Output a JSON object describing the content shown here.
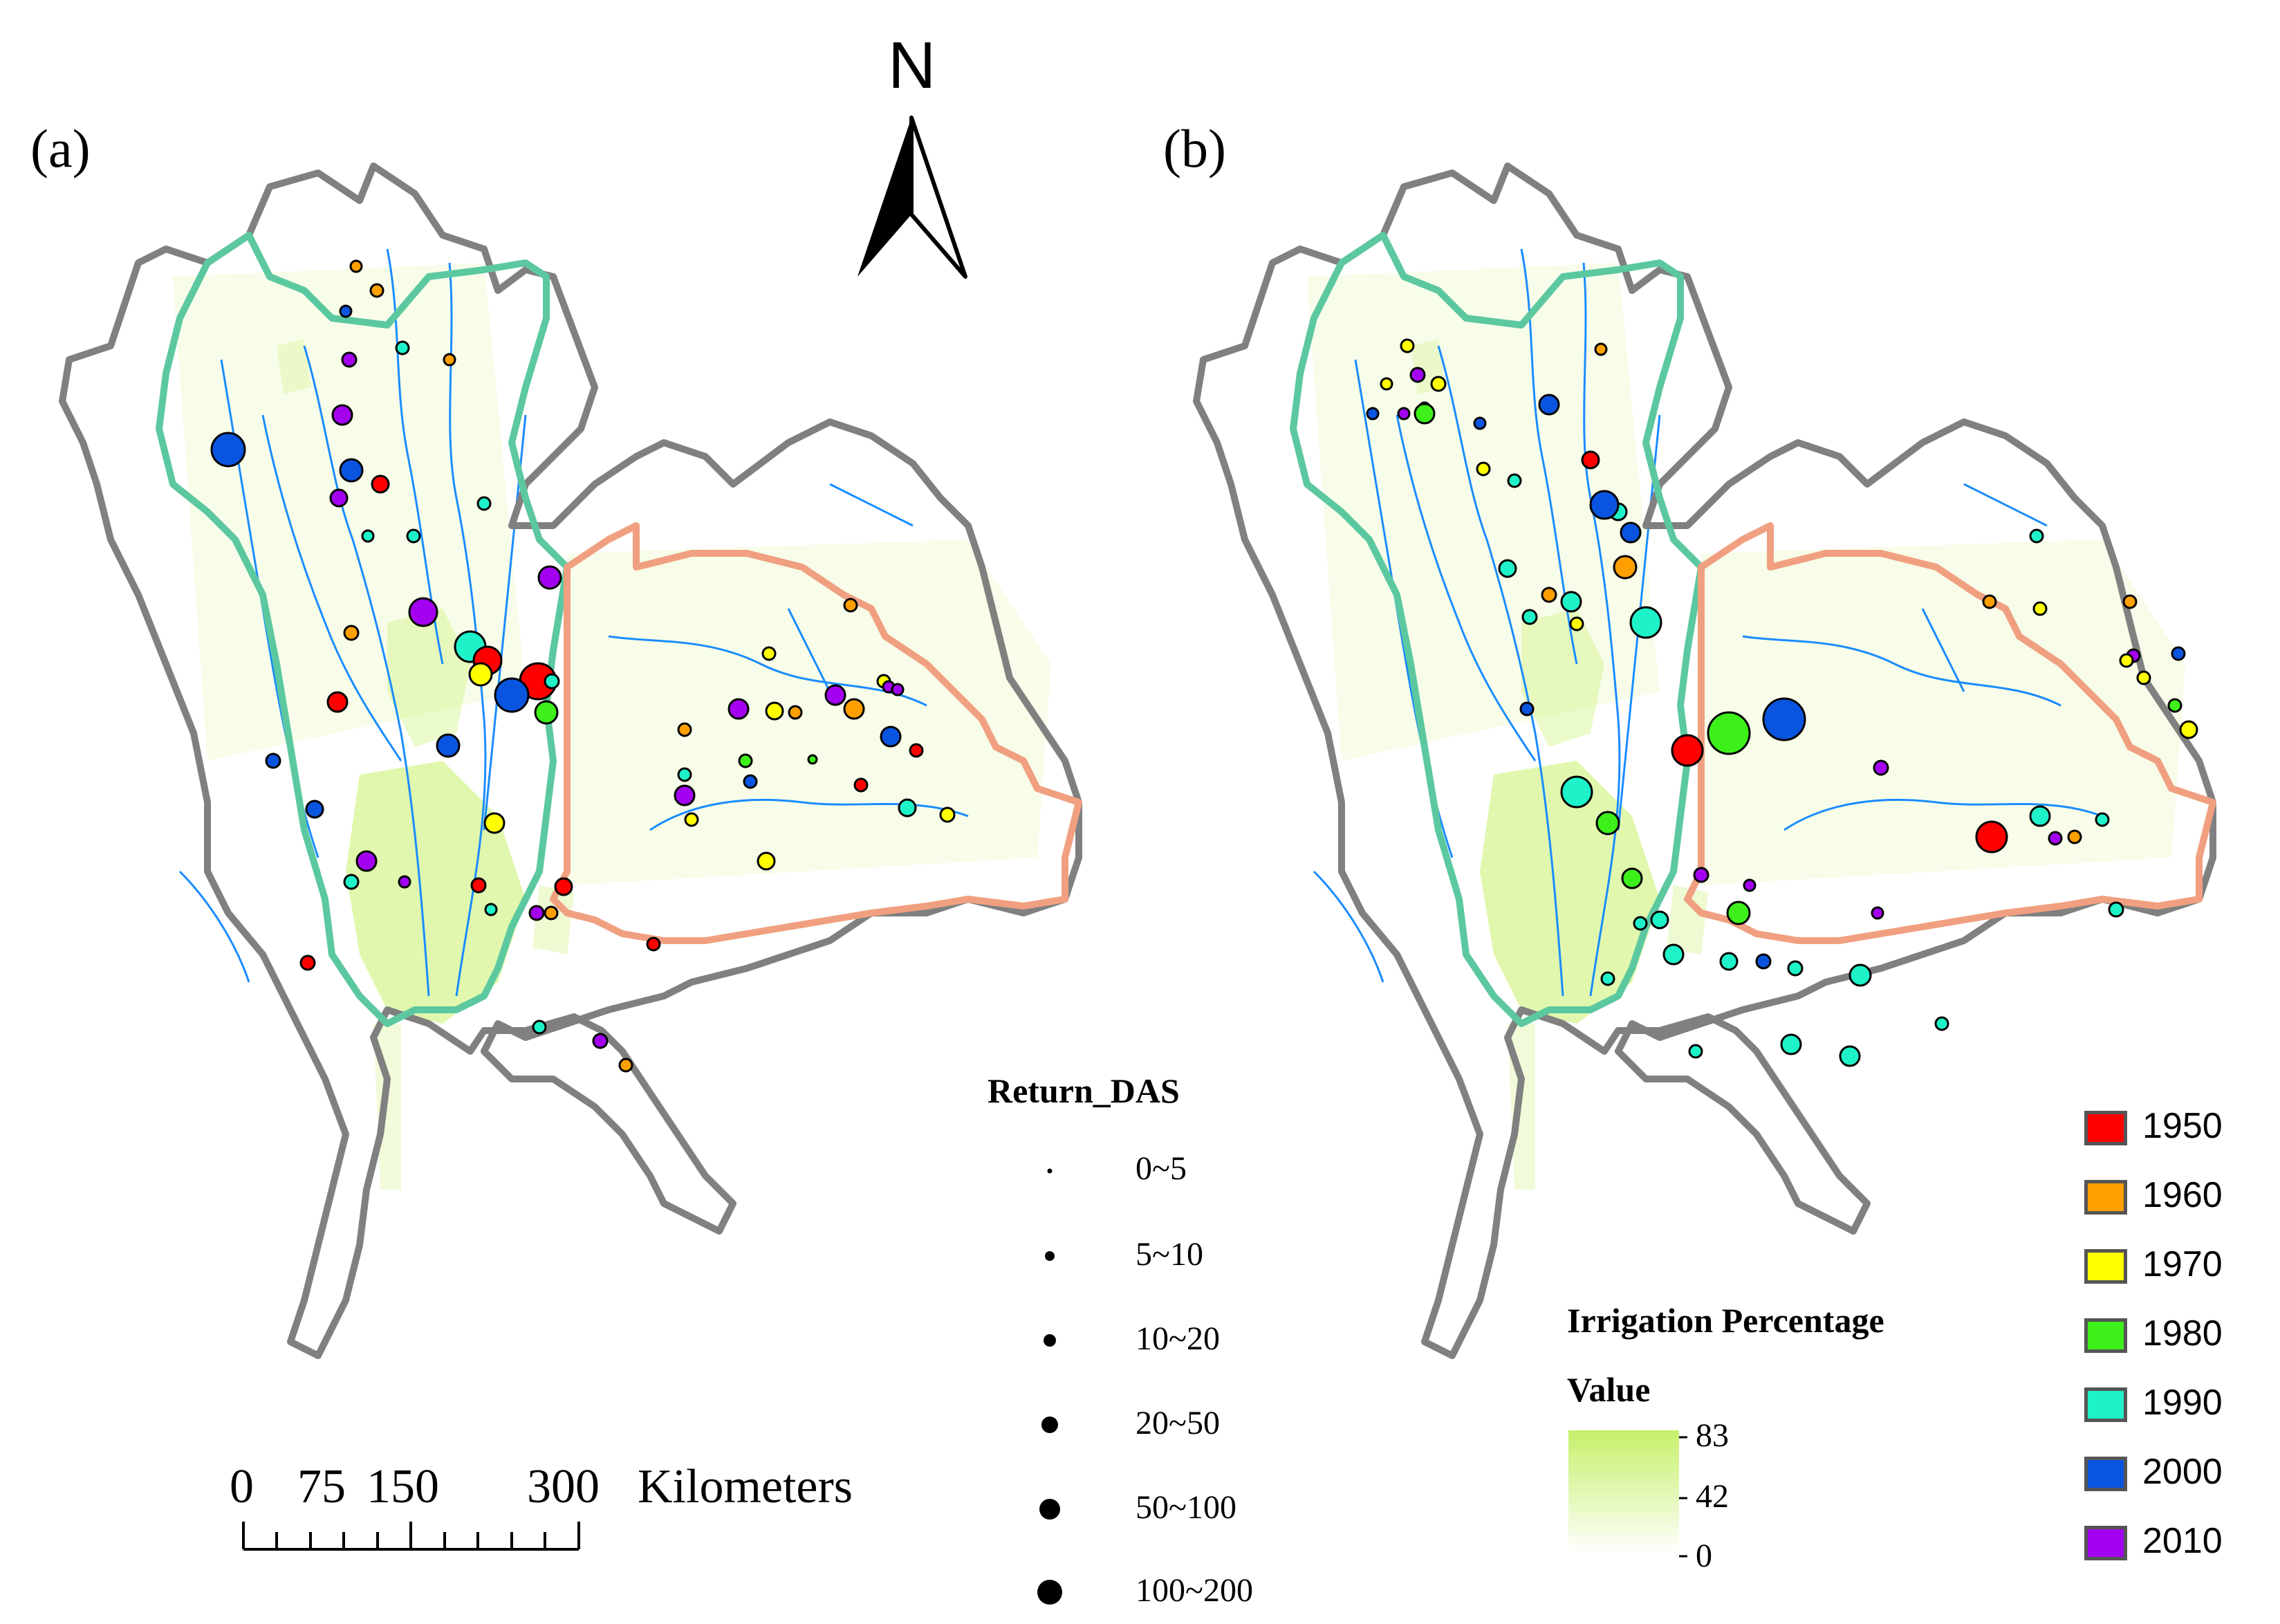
{
  "panels": [
    {
      "label": "(a)"
    },
    {
      "label": "(b)"
    }
  ],
  "north_arrow": {
    "letter": "N"
  },
  "scale_bar": {
    "ticks": [
      "0",
      "75",
      "150",
      "300"
    ],
    "unit": "Kilometers"
  },
  "return_das_legend": {
    "title": "Return_DAS",
    "classes": [
      "0~5",
      "5~10",
      "10~20",
      "20~50",
      "50~100",
      "100~200"
    ]
  },
  "irrigation_legend": {
    "title": "Irrigation Percentage",
    "subtitle": "Value",
    "max": "83",
    "mid": "42",
    "min": "0",
    "ramp_colors": [
      "#c6f06a",
      "#ffffff"
    ]
  },
  "year_legend": {
    "items": [
      {
        "year": "1950",
        "color": "#ff0000"
      },
      {
        "year": "1960",
        "color": "#ff9f00"
      },
      {
        "year": "1970",
        "color": "#ffff00"
      },
      {
        "year": "1980",
        "color": "#3ef01a"
      },
      {
        "year": "1990",
        "color": "#1ef2c8"
      },
      {
        "year": "2000",
        "color": "#0a55e0"
      },
      {
        "year": "2010",
        "color": "#a400f0"
      }
    ]
  },
  "map_colors": {
    "country_outline": "#808080",
    "basin_chao_phraya": "#5cc8a0",
    "basin_mun_chi": "#f0a080",
    "rivers": "#1a8cff",
    "irrigation": "#c6f06a"
  }
}
